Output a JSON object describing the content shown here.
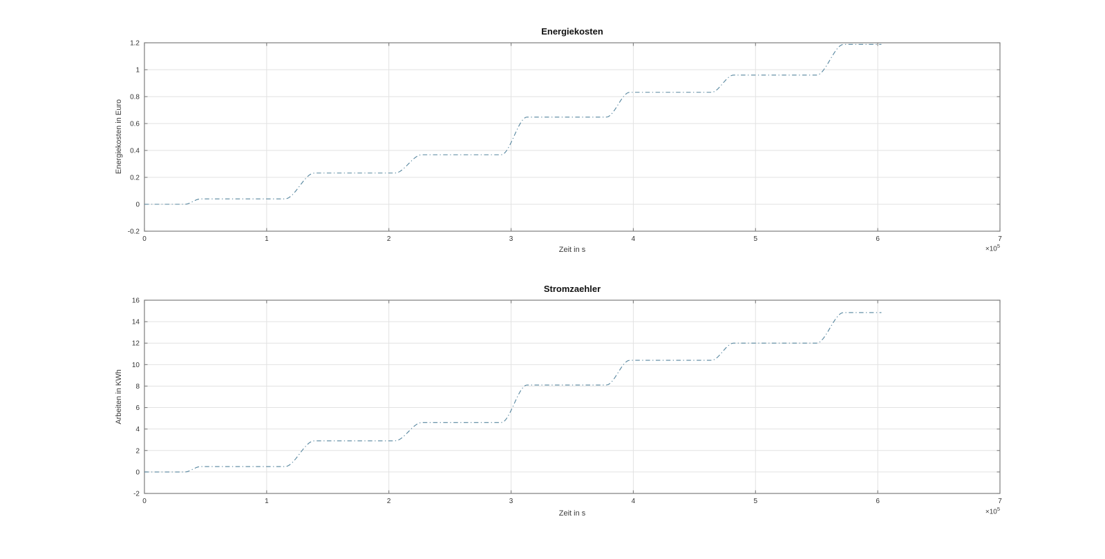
{
  "figure": {
    "background_color": "#ffffff",
    "line_color": "#55859e",
    "grid_color": "#e2e2e2",
    "axis_color": "#7d7d7d",
    "tick_label_color": "#333333",
    "axis_label_color": "#3a3a3a",
    "title_color": "#111111",
    "exponent_label": {
      "multiplier": "×10",
      "exponent": "5"
    }
  },
  "chart_data": [
    {
      "type": "line",
      "title": "Energiekosten",
      "xlabel": "Zeit in s",
      "ylabel": "Energiekosten in Euro",
      "x_multiplier_label": "×10^5",
      "xlim": [
        0,
        7
      ],
      "ylim": [
        -0.2,
        1.2
      ],
      "x_tick_values": [
        0,
        1,
        2,
        3,
        4,
        5,
        6,
        7
      ],
      "x_tick_labels": [
        "0",
        "1",
        "2",
        "3",
        "4",
        "5",
        "6",
        "7"
      ],
      "y_tick_values": [
        -0.2,
        0,
        0.2,
        0.4,
        0.6,
        0.8,
        1,
        1.2
      ],
      "y_tick_labels": [
        "-0.2",
        "0",
        "0.2",
        "0.4",
        "0.6",
        "0.8",
        "1",
        "1.2"
      ],
      "grid": true,
      "legend": "none",
      "line_style": "dash-dot",
      "series": [
        {
          "name": "Energiekosten",
          "x_start": 0,
          "x_end": 6.03,
          "plateaus": [
            0,
            0.04,
            0.232,
            0.368,
            0.648,
            0.832,
            0.96,
            1.188
          ],
          "transitions": [
            [
              0.33,
              0.46
            ],
            [
              1.15,
              1.39
            ],
            [
              2.05,
              2.27
            ],
            [
              2.92,
              3.13
            ],
            [
              3.78,
              3.97
            ],
            [
              4.64,
              4.82
            ],
            [
              5.5,
              5.72
            ]
          ]
        }
      ]
    },
    {
      "type": "line",
      "title": "Stromzaehler",
      "xlabel": "Zeit in s",
      "ylabel": "Arbeiten in KWh",
      "x_multiplier_label": "×10^5",
      "xlim": [
        0,
        7
      ],
      "ylim": [
        -2,
        16
      ],
      "x_tick_values": [
        0,
        1,
        2,
        3,
        4,
        5,
        6,
        7
      ],
      "x_tick_labels": [
        "0",
        "1",
        "2",
        "3",
        "4",
        "5",
        "6",
        "7"
      ],
      "y_tick_values": [
        -2,
        0,
        2,
        4,
        6,
        8,
        10,
        12,
        14,
        16
      ],
      "y_tick_labels": [
        "-2",
        "0",
        "2",
        "4",
        "6",
        "8",
        "10",
        "12",
        "14",
        "16"
      ],
      "grid": true,
      "legend": "none",
      "line_style": "dash-dot",
      "series": [
        {
          "name": "Stromzaehler",
          "x_start": 0,
          "x_end": 6.03,
          "plateaus": [
            0,
            0.5,
            2.9,
            4.6,
            8.1,
            10.4,
            12.0,
            14.85
          ],
          "transitions": [
            [
              0.33,
              0.46
            ],
            [
              1.15,
              1.39
            ],
            [
              2.05,
              2.27
            ],
            [
              2.92,
              3.13
            ],
            [
              3.78,
              3.97
            ],
            [
              4.64,
              4.82
            ],
            [
              5.5,
              5.72
            ]
          ]
        }
      ]
    }
  ]
}
